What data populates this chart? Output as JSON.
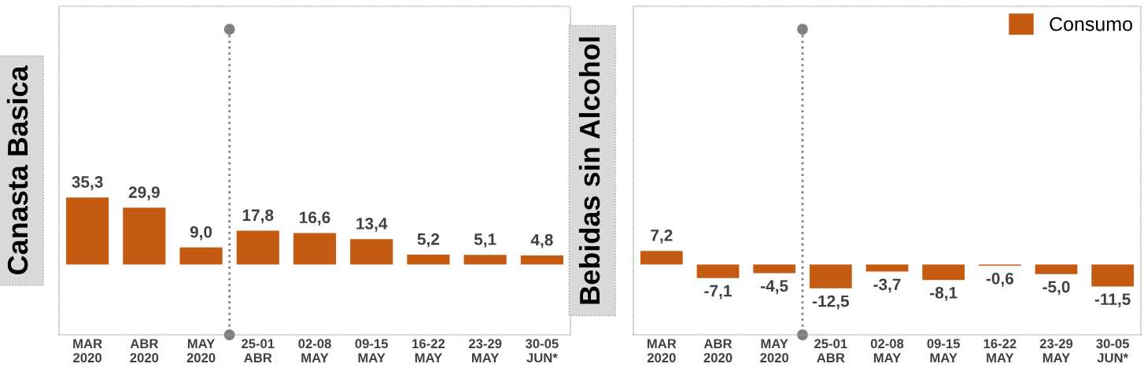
{
  "chart_data": [
    {
      "type": "bar",
      "ylabel": "Canasta Basica",
      "categories": [
        "MAR\n2020",
        "ABR\n2020",
        "MAY\n2020",
        "25-01\nABR",
        "02-08\nMAY",
        "09-15\nMAY",
        "16-22\nMAY",
        "23-29\nMAY",
        "30-05\nJUN*"
      ],
      "ylim": [
        -37,
        136
      ],
      "tick_labels": "x",
      "grid": false,
      "legend": false,
      "series": [
        {
          "color": "#c55a11",
          "values": [
            35.3,
            29.9,
            9.0,
            17.8,
            16.6,
            13.4,
            5.2,
            5.1,
            4.8
          ],
          "value_labels": [
            "35,3",
            "29,9",
            "9,0",
            "17,8",
            "16,6",
            "13,4",
            "5,2",
            "5,1",
            "4,8"
          ]
        }
      ]
    },
    {
      "type": "bar",
      "ylabel": "Bebidas sin Alcohol",
      "categories": [
        "MAR\n2020",
        "ABR\n2020",
        "MAY\n2020",
        "25-01\nABR",
        "02-08\nMAY",
        "09-15\nMAY",
        "16-22\nMAY",
        "23-29\nMAY",
        "30-05\nJUN*"
      ],
      "ylim": [
        -37,
        136
      ],
      "tick_labels": "x",
      "grid": false,
      "legend": "top right",
      "series": [
        {
          "name": "Consumo",
          "color": "#c55a11",
          "values": [
            7.2,
            -7.1,
            -4.5,
            -12.5,
            -3.7,
            -8.1,
            -0.6,
            -5.0,
            -11.5
          ],
          "value_labels": [
            "7,2",
            "-7,1",
            "-4,5",
            "-12,5",
            "-3,7",
            "-8,1",
            "-0,6",
            "-5,0",
            "-11,5"
          ]
        }
      ]
    }
  ]
}
